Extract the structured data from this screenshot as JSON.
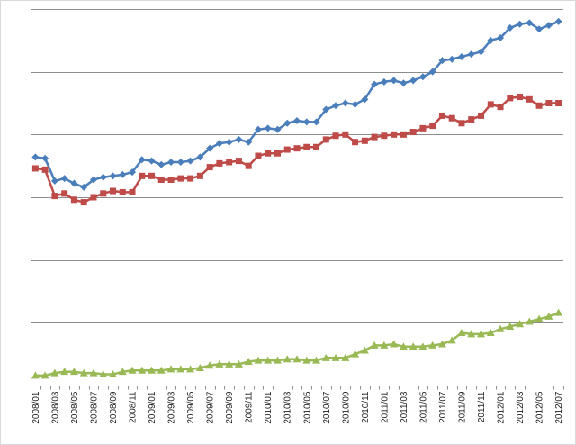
{
  "chart_data": {
    "type": "line",
    "title": "",
    "xlabel": "",
    "ylabel": "",
    "ylim": [
      0,
      300
    ],
    "y_gridlines": [
      0,
      50,
      100,
      150,
      200,
      250,
      300
    ],
    "grid": true,
    "legend": "none",
    "categories": [
      "2008/01",
      "2008/02",
      "2008/03",
      "2008/04",
      "2008/05",
      "2008/06",
      "2008/07",
      "2008/08",
      "2008/09",
      "2008/10",
      "2008/11",
      "2008/12",
      "2009/01",
      "2009/02",
      "2009/03",
      "2009/04",
      "2009/05",
      "2009/06",
      "2009/07",
      "2009/08",
      "2009/09",
      "2009/10",
      "2009/11",
      "2009/12",
      "2010/01",
      "2010/02",
      "2010/03",
      "2010/04",
      "2010/05",
      "2010/06",
      "2010/07",
      "2010/08",
      "2010/09",
      "2010/10",
      "2010/11",
      "2010/12",
      "2011/01",
      "2011/02",
      "2011/03",
      "2011/04",
      "2011/05",
      "2011/06",
      "2011/07",
      "2011/08",
      "2011/09",
      "2011/10",
      "2011/11",
      "2011/12",
      "2012/01",
      "2012/02",
      "2012/03",
      "2012/04",
      "2012/05",
      "2012/06",
      "2012/07"
    ],
    "tick_labels": [
      "2008/01",
      "2008/03",
      "2008/05",
      "2008/07",
      "2008/09",
      "2008/11",
      "2009/01",
      "2009/03",
      "2009/05",
      "2009/07",
      "2009/09",
      "2009/11",
      "2010/01",
      "2010/03",
      "2010/05",
      "2010/07",
      "2010/09",
      "2010/11",
      "2011/01",
      "2011/03",
      "2011/05",
      "2011/07",
      "2011/09",
      "2011/11",
      "2012/01",
      "2012/03",
      "2012/05",
      "2012/07"
    ],
    "series": [
      {
        "name": "Series 1",
        "color": "#4a7ebb",
        "marker": "diamond",
        "values": [
          182,
          181,
          163,
          165,
          161,
          158,
          164,
          166,
          167,
          168,
          170,
          180,
          179,
          176,
          178,
          178,
          179,
          182,
          189,
          193,
          194,
          196,
          194,
          204,
          205,
          204,
          209,
          211,
          210,
          210,
          220,
          223,
          225,
          224,
          228,
          240,
          242,
          243,
          241,
          243,
          246,
          250,
          259,
          260,
          262,
          264,
          266,
          275,
          277,
          285,
          288,
          289,
          284,
          287,
          290
        ]
      },
      {
        "name": "Series 2",
        "color": "#be4b48",
        "marker": "square",
        "values": [
          173,
          172,
          151,
          153,
          148,
          146,
          150,
          153,
          155,
          154,
          154,
          167,
          167,
          164,
          164,
          165,
          165,
          167,
          174,
          177,
          178,
          179,
          175,
          183,
          185,
          185,
          188,
          189,
          190,
          190,
          196,
          199,
          200,
          194,
          195,
          198,
          199,
          200,
          200,
          202,
          205,
          207,
          215,
          213,
          209,
          212,
          215,
          224,
          222,
          229,
          230,
          228,
          223,
          225,
          225
        ]
      },
      {
        "name": "Series 3",
        "color": "#98b954",
        "marker": "triangle",
        "values": [
          8,
          8,
          10,
          11,
          11,
          10,
          10,
          9,
          9,
          11,
          12,
          12,
          12,
          12,
          13,
          13,
          13,
          14,
          16,
          17,
          17,
          17,
          19,
          20,
          20,
          20,
          21,
          21,
          20,
          20,
          22,
          22,
          22,
          25,
          28,
          32,
          32,
          33,
          31,
          31,
          31,
          32,
          33,
          36,
          42,
          41,
          41,
          42,
          45,
          47,
          49,
          51,
          53,
          55,
          58
        ]
      }
    ]
  }
}
